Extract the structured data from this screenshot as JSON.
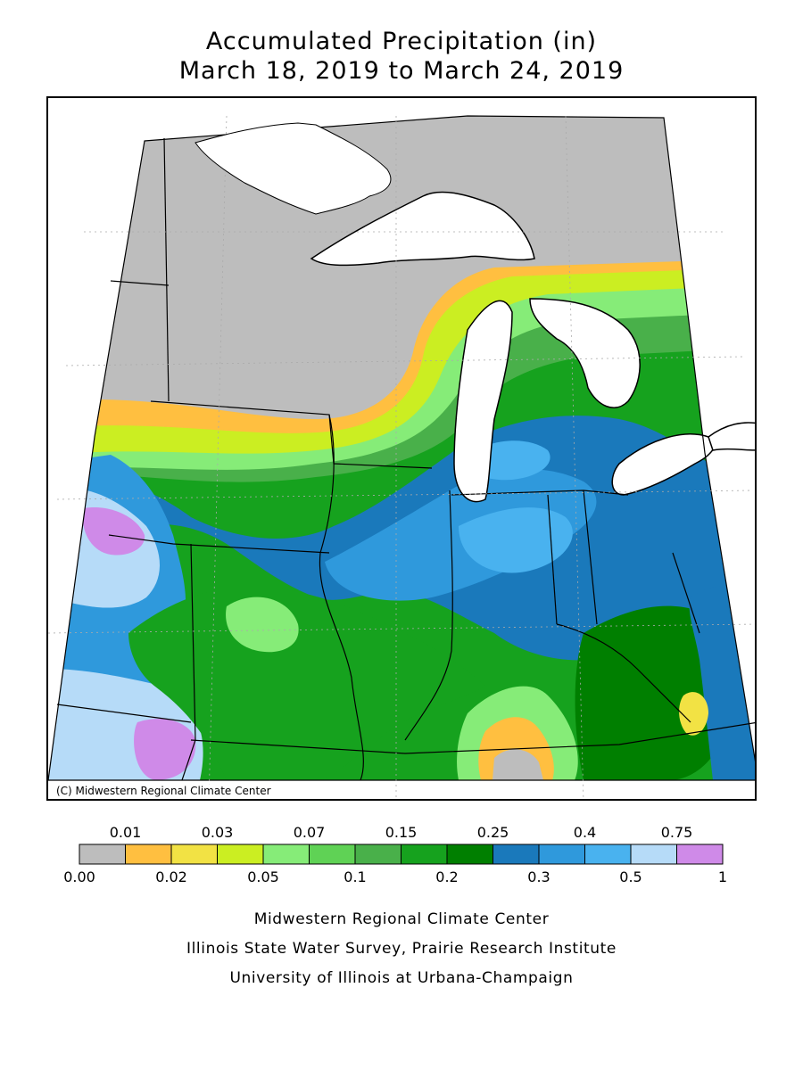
{
  "title": {
    "line1": "Accumulated Precipitation (in)",
    "line2": "March 18, 2019 to March 24, 2019"
  },
  "map": {
    "credit": "(C) Midwestern Regional Climate Center"
  },
  "legend": {
    "upper_labels": [
      "0.01",
      "0.03",
      "0.07",
      "0.15",
      "0.25",
      "0.4",
      "0.75"
    ],
    "lower_labels": [
      "0.00",
      "0.02",
      "0.05",
      "0.1",
      "0.2",
      "0.3",
      "0.5",
      "1"
    ],
    "colors": [
      "#bdbdbd",
      "#ffbf40",
      "#f2e244",
      "#cbee22",
      "#86ec78",
      "#5fd255",
      "#49b04a",
      "#16a21e",
      "#007f00",
      "#1a79bb",
      "#2f99dc",
      "#49b2ef",
      "#b6dbf8",
      "#cf8ae8"
    ]
  },
  "footer": {
    "line1": "Midwestern Regional Climate Center",
    "line2": "Illinois State Water Survey, Prairie Research Institute",
    "line3": "University of Illinois at Urbana-Champaign"
  }
}
